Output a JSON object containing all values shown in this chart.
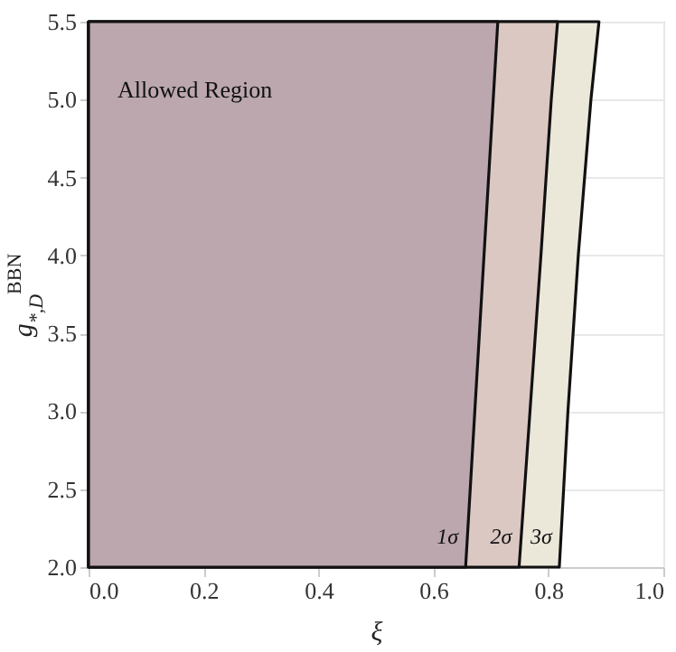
{
  "chart_data": {
    "type": "area",
    "orientation": "horizontal",
    "xlabel": "ξ",
    "ylabel": "g$_{*,D}$$^{BBN}$",
    "xlim": [
      0,
      1
    ],
    "ylim": [
      2,
      5.5
    ],
    "xticks": [
      {
        "value": 0,
        "label": "0.0"
      },
      {
        "value": 0.2,
        "label": "0.2"
      },
      {
        "value": 0.4,
        "label": "0.4"
      },
      {
        "value": 0.6,
        "label": "0.6"
      },
      {
        "value": 0.8,
        "label": "0.8"
      },
      {
        "value": 1,
        "label": "1.0"
      }
    ],
    "yticks": [
      {
        "value": 2,
        "label": "2.0"
      },
      {
        "value": 2.5,
        "label": "2.5"
      },
      {
        "value": 3,
        "label": "3.0"
      },
      {
        "value": 3.5,
        "label": "3.5"
      },
      {
        "value": 4,
        "label": "4.0"
      },
      {
        "value": 4.5,
        "label": "4.5"
      },
      {
        "value": 5,
        "label": "5.0"
      },
      {
        "value": 5.5,
        "label": "5.5"
      }
    ],
    "grid": true,
    "series": [
      {
        "name": "3σ",
        "color": "#ebe8da",
        "x": [
          2,
          3,
          4,
          5,
          5.5
        ],
        "values": [
          0.819,
          0.834,
          0.852,
          0.874,
          0.888
        ]
      },
      {
        "name": "2σ",
        "color": "#dcc8c2",
        "x": [
          2,
          3,
          4,
          5,
          5.5
        ],
        "values": [
          0.749,
          0.768,
          0.787,
          0.805,
          0.816
        ]
      },
      {
        "name": "1σ",
        "color": "#bba7ad",
        "x": [
          2,
          3,
          4,
          5,
          5.5
        ],
        "values": [
          0.656,
          0.672,
          0.688,
          0.704,
          0.712
        ]
      }
    ],
    "annotations": [
      "Allowed Region"
    ]
  }
}
